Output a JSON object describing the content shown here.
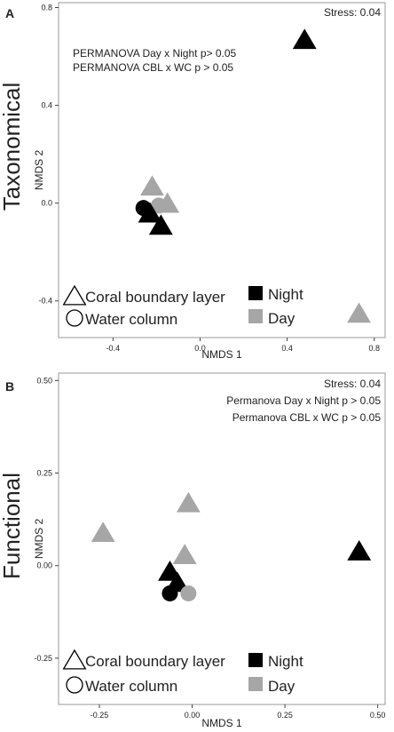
{
  "chart_data": [
    {
      "type": "scatter",
      "panel_letter": "A",
      "row_label": "Taxonomical",
      "xlabel": "NMDS 1",
      "ylabel": "NMDS 2",
      "xlim": [
        -0.65,
        0.85
      ],
      "ylim": [
        -0.55,
        0.82
      ],
      "xticks": [
        -0.4,
        0.0,
        0.4,
        0.8
      ],
      "xtick_labels": [
        "-0.4",
        "0.0",
        "0.4",
        "0.8"
      ],
      "yticks": [
        -0.4,
        0.0,
        0.4,
        0.8
      ],
      "ytick_labels": [
        "-0.4",
        "0.0",
        "0.4",
        "0.8"
      ],
      "grid": false,
      "annotations": [
        {
          "text": "Stress: 0.04",
          "position": "top-right"
        },
        {
          "text": "PERMANOVA Day x Night p> 0.05",
          "position": "top-left"
        },
        {
          "text": "PERMANOVA CBL x WC p > 0.05",
          "position": "top-left"
        }
      ],
      "legend": {
        "placement": "bottom",
        "shape": [
          {
            "label": "Coral boundary layer",
            "marker": "triangle"
          },
          {
            "label": "Water column",
            "marker": "circle"
          }
        ],
        "color": [
          {
            "label": "Night",
            "color": "#000000"
          },
          {
            "label": "Day",
            "color": "#a6a6a6"
          }
        ]
      },
      "points": [
        {
          "x": 0.48,
          "y": 0.67,
          "shape": "triangle",
          "group": "Night"
        },
        {
          "x": 0.73,
          "y": -0.45,
          "shape": "triangle",
          "group": "Day"
        },
        {
          "x": -0.22,
          "y": 0.07,
          "shape": "triangle",
          "group": "Day"
        },
        {
          "x": -0.15,
          "y": 0.0,
          "shape": "triangle",
          "group": "Day"
        },
        {
          "x": -0.19,
          "y": -0.01,
          "shape": "circle",
          "group": "Day"
        },
        {
          "x": -0.26,
          "y": -0.02,
          "shape": "circle",
          "group": "Night"
        },
        {
          "x": -0.23,
          "y": -0.04,
          "shape": "triangle",
          "group": "Night"
        },
        {
          "x": -0.18,
          "y": -0.09,
          "shape": "triangle",
          "group": "Night"
        }
      ]
    },
    {
      "type": "scatter",
      "panel_letter": "B",
      "row_label": "Functional",
      "xlabel": "NMDS 1",
      "ylabel": "NMDS 2",
      "xlim": [
        -0.36,
        0.52
      ],
      "ylim": [
        -0.375,
        0.52
      ],
      "xticks": [
        -0.25,
        0.0,
        0.25,
        0.5
      ],
      "xtick_labels": [
        "-0.25",
        "0.00",
        "0.25",
        "0.50"
      ],
      "yticks": [
        -0.25,
        0.0,
        0.25,
        0.5
      ],
      "ytick_labels": [
        "-0.25",
        "0.00",
        "0.25",
        "0.50"
      ],
      "grid": false,
      "annotations": [
        {
          "text": "Stress: 0.04",
          "position": "top-right"
        },
        {
          "text": "Permanova Day x Night p > 0.05",
          "position": "top-right"
        },
        {
          "text": "Permanova CBL x WC p > 0.05",
          "position": "top-right"
        }
      ],
      "legend": {
        "placement": "bottom",
        "shape": [
          {
            "label": "Coral boundary layer",
            "marker": "triangle"
          },
          {
            "label": "Water column",
            "marker": "circle"
          }
        ],
        "color": [
          {
            "label": "Night",
            "color": "#000000"
          },
          {
            "label": "Day",
            "color": "#a6a6a6"
          }
        ]
      },
      "points": [
        {
          "x": 0.45,
          "y": 0.04,
          "shape": "triangle",
          "group": "Night"
        },
        {
          "x": -0.24,
          "y": 0.09,
          "shape": "triangle",
          "group": "Day"
        },
        {
          "x": -0.01,
          "y": 0.17,
          "shape": "triangle",
          "group": "Day"
        },
        {
          "x": -0.02,
          "y": 0.03,
          "shape": "triangle",
          "group": "Day"
        },
        {
          "x": -0.06,
          "y": -0.015,
          "shape": "triangle",
          "group": "Night"
        },
        {
          "x": -0.04,
          "y": -0.045,
          "shape": "triangle",
          "group": "Night"
        },
        {
          "x": -0.06,
          "y": -0.075,
          "shape": "circle",
          "group": "Night"
        },
        {
          "x": -0.01,
          "y": -0.075,
          "shape": "circle",
          "group": "Day"
        }
      ]
    }
  ]
}
